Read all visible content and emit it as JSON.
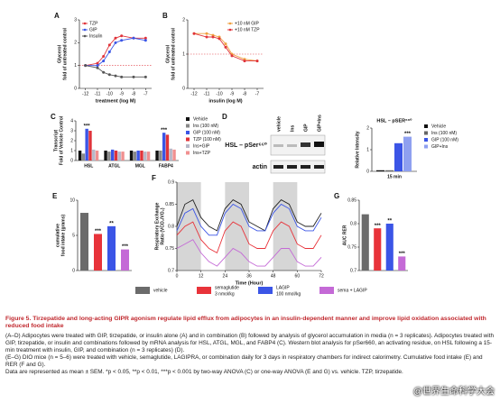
{
  "chart_data": [
    {
      "type": "line",
      "label": "A",
      "xlabel": "treatment (log M)",
      "ylabel": [
        "Glycerol",
        "fold of untreated control"
      ],
      "x": [
        -12,
        -11,
        -10.5,
        -10,
        -9.5,
        -9,
        -8,
        -7
      ],
      "xlim": [
        -12.5,
        -6.5
      ],
      "xticks": [
        -12,
        -11,
        -10,
        -9,
        -8,
        -7
      ],
      "ylim": [
        0,
        3
      ],
      "yticks": [
        0,
        1,
        2,
        3
      ],
      "ref_line": 1,
      "markers": true,
      "legend": "upper left",
      "series": [
        {
          "name": "TZP",
          "color": "#e0333a",
          "values": [
            1.0,
            1.1,
            1.4,
            1.9,
            2.2,
            2.3,
            2.2,
            2.2
          ]
        },
        {
          "name": "GIP",
          "color": "#3b55e6",
          "values": [
            1.0,
            1.0,
            1.2,
            1.6,
            2.0,
            2.1,
            2.2,
            2.1
          ]
        },
        {
          "name": "Insulin",
          "color": "#555555",
          "values": [
            1.0,
            0.9,
            0.7,
            0.6,
            0.55,
            0.5,
            0.5,
            0.5
          ]
        }
      ]
    },
    {
      "type": "line",
      "label": "B",
      "xlabel": "insulin (log M)",
      "ylabel": [
        "Glycerol",
        "fold of untreated control"
      ],
      "x": [
        -12,
        -11,
        -10.5,
        -10,
        -9.5,
        -9,
        -8,
        -7
      ],
      "xlim": [
        -12.5,
        -6.5
      ],
      "xticks": [
        -12,
        -11,
        -10,
        -9,
        -8,
        -7
      ],
      "ylim": [
        0,
        2
      ],
      "yticks": [
        0,
        1,
        2
      ],
      "ref_line": 1,
      "markers": true,
      "legend": "upper right",
      "series": [
        {
          "name": "+10 nM GIP",
          "color": "#f0a040",
          "values": [
            1.6,
            1.6,
            1.55,
            1.5,
            1.3,
            1.0,
            0.85,
            0.8
          ]
        },
        {
          "name": "+10 nM TZP",
          "color": "#e0333a",
          "values": [
            1.6,
            1.5,
            1.5,
            1.45,
            1.2,
            0.95,
            0.8,
            0.8
          ]
        }
      ]
    },
    {
      "type": "bar",
      "label": "C",
      "ylabel": [
        "Transcript",
        "Fold of Vehicle Control"
      ],
      "categories": [
        "HSL",
        "ATGL",
        "MGL",
        "FABP4"
      ],
      "ylim": [
        0,
        4
      ],
      "yticks": [
        0,
        1,
        2,
        3,
        4
      ],
      "legend": "right",
      "series": [
        {
          "name": "Vehicle",
          "color": "#111111",
          "values": [
            1,
            1,
            1,
            1
          ]
        },
        {
          "name": "Ins (100 nM)",
          "color": "#888888",
          "values": [
            0.7,
            0.9,
            0.9,
            1.0
          ]
        },
        {
          "name": "GIP (100 nM)",
          "color": "#3b55e6",
          "values": [
            3.2,
            1.1,
            1.0,
            2.8
          ],
          "sig": [
            "***",
            null,
            null,
            "***"
          ]
        },
        {
          "name": "TZP (100 nM)",
          "color": "#e0333a",
          "values": [
            3.0,
            1.0,
            1.0,
            2.6
          ]
        },
        {
          "name": "Ins+GIP",
          "color": "#b8b8c8",
          "values": [
            1.1,
            0.9,
            0.9,
            1.2
          ]
        },
        {
          "name": "Ins+TZP",
          "color": "#f09090",
          "values": [
            1.0,
            0.9,
            0.9,
            1.1
          ]
        }
      ]
    },
    {
      "type": "bar",
      "label": "D",
      "title": "HSL – pSER⁶⁶⁰",
      "ylabel": [
        "Relative Intensity"
      ],
      "categories": [
        "15 min"
      ],
      "ylim": [
        0,
        2
      ],
      "yticks": [
        0,
        1,
        2
      ],
      "legend": "right",
      "series": [
        {
          "name": "Vehicle",
          "color": "#111111",
          "values": [
            0.05
          ]
        },
        {
          "name": "Ins (100 nM)",
          "color": "#666666",
          "values": [
            0.05
          ]
        },
        {
          "name": "GIP (100 nM)",
          "color": "#3b55e6",
          "values": [
            1.3
          ]
        },
        {
          "name": "GIP+Ins",
          "color": "#8fa0f0",
          "values": [
            1.6
          ],
          "sig": [
            "***"
          ]
        }
      ]
    },
    {
      "type": "bar",
      "label": "E",
      "ylabel": [
        "cumulative",
        "food intake (grams)"
      ],
      "categories": [
        null,
        null,
        null,
        null
      ],
      "values": [
        8.2,
        5.2,
        6.3,
        3.0
      ],
      "sig": [
        null,
        "***",
        "**",
        "***"
      ],
      "colors": [
        "#6b6b6b",
        "#e8333a",
        "#3b55e6",
        "#c46ad6"
      ],
      "ylim": [
        0,
        10
      ],
      "yticks": [
        0,
        5,
        10
      ]
    },
    {
      "type": "line",
      "label": "F",
      "xlabel": "Time (Hour)",
      "ylabel": [
        "Respiratory Exchange",
        "Ratio (VCO₂/VO₂)"
      ],
      "x": [
        0,
        4,
        8,
        12,
        16,
        20,
        24,
        28,
        32,
        36,
        40,
        44,
        48,
        52,
        56,
        60,
        64,
        68,
        72
      ],
      "xlim": [
        0,
        72
      ],
      "xticks": [
        0,
        12,
        24,
        36,
        48,
        60,
        72
      ],
      "ylim": [
        0.7,
        0.9
      ],
      "yticks": [
        0.7,
        0.75,
        0.8,
        0.85,
        0.9
      ],
      "shaded": [
        [
          0,
          12
        ],
        [
          24,
          36
        ],
        [
          48,
          60
        ]
      ],
      "series": [
        {
          "color": "#222222",
          "values": [
            0.8,
            0.85,
            0.86,
            0.82,
            0.8,
            0.79,
            0.84,
            0.86,
            0.85,
            0.81,
            0.8,
            0.79,
            0.84,
            0.86,
            0.85,
            0.81,
            0.8,
            0.8,
            0.83
          ]
        },
        {
          "color": "#e8333a",
          "values": [
            0.78,
            0.8,
            0.81,
            0.77,
            0.75,
            0.74,
            0.79,
            0.81,
            0.8,
            0.76,
            0.75,
            0.75,
            0.79,
            0.81,
            0.8,
            0.76,
            0.75,
            0.75,
            0.78
          ]
        },
        {
          "color": "#3b55e6",
          "values": [
            0.79,
            0.83,
            0.84,
            0.8,
            0.78,
            0.78,
            0.83,
            0.85,
            0.84,
            0.8,
            0.79,
            0.79,
            0.83,
            0.85,
            0.84,
            0.8,
            0.79,
            0.79,
            0.82
          ]
        },
        {
          "color": "#c46ad6",
          "values": [
            0.75,
            0.76,
            0.77,
            0.74,
            0.72,
            0.71,
            0.73,
            0.75,
            0.74,
            0.72,
            0.71,
            0.71,
            0.73,
            0.75,
            0.75,
            0.72,
            0.71,
            0.71,
            0.73
          ]
        }
      ]
    },
    {
      "type": "bar",
      "label": "G",
      "ylabel": [
        "AUC RER"
      ],
      "categories": [
        null,
        null,
        null,
        null
      ],
      "values": [
        0.82,
        0.79,
        0.8,
        0.73
      ],
      "sig": [
        null,
        "***",
        "**",
        "***"
      ],
      "colors": [
        "#6b6b6b",
        "#e8333a",
        "#3b55e6",
        "#c46ad6"
      ],
      "ylim": [
        0.7,
        0.85
      ],
      "yticks": [
        0.7,
        0.75,
        0.8,
        0.85
      ]
    }
  ],
  "blot": {
    "lanes": [
      "vehicle",
      "Ins",
      "GIP",
      "GIP+Ins"
    ],
    "rows": [
      "HSL – pSer⁶⁶⁰",
      "actin"
    ]
  },
  "legend": [
    {
      "name": "vehicle",
      "color": "#6b6b6b"
    },
    {
      "name": "semaglutide",
      "detail": "3 nmol/kg",
      "color": "#e8333a"
    },
    {
      "name": "LAGIP",
      "detail": "100 nmol/kg",
      "color": "#3b55e6"
    },
    {
      "name": "sema + LAGIP",
      "color": "#c46ad6"
    }
  ],
  "caption": {
    "title": "Figure 5.  Tirzepatide and long-acting GIPR agonism regulate lipid efflux from adipocytes in an insulin-dependent manner and improve lipid oxidation associated with reduced food intake",
    "paragraphs": [
      "(A–D) Adipocytes were treated with GIP, tirzepatide, or insulin alone (A) and in combination (B) followed by analysis of glycerol accumulation in media (n = 3 replicates). Adipocytes treated with GIP, tirzepatide, or insulin and combinations followed by mRNA analysis for HSL, ATGL, MGL, and FABP4 (C). Western blot analysis for pSer660, an activating residue, on HSL following a 15-min treatment with insulin, GIP, and combination (n = 3 replicates) (D).",
      "(E–G) DIO mice (n = 5–6) were treated with vehicle, semaglutide, LAGIPRA, or combination daily for 3 days in respiratory chambers for indirect calorimetry. Cumulative food intake (E) and RER (F and G).",
      "Data are represented as mean ± SEM. *p < 0.05, **p < 0.01, ***p < 0.001 by two-way ANOVA (C) or one-way ANOVA (E and G) vs. vehicle. TZP, tirzepatide."
    ]
  },
  "watermark": "@世界生命科学大会"
}
